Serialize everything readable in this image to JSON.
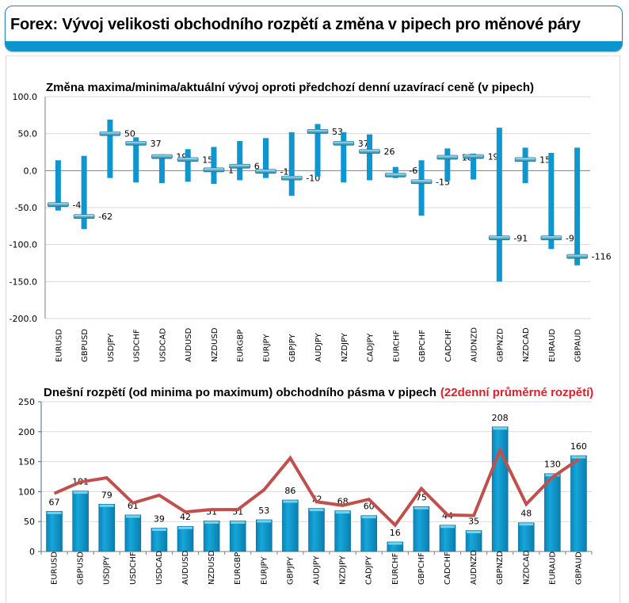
{
  "header": {
    "title": "Forex: Vývoj velikosti obchodního rozpětí a změna v pipech pro měnové páry",
    "accent_color": "#0a95cd"
  },
  "chart_data": [
    {
      "type": "errorbar",
      "title": "Změna maxima/minima/aktuální vývoj oproti předchozí denní uzavírací ceně (v pipech)",
      "xlabel": "",
      "ylabel": "",
      "ylim": [
        -200,
        100
      ],
      "yticks": [
        "100.0",
        "50.0",
        "0.0",
        "-50.0",
        "-100.0",
        "-150.0",
        "-200.0"
      ],
      "ytick_values": [
        100,
        50,
        0,
        -50,
        -100,
        -150,
        -200
      ],
      "grid": true,
      "bar_color": "#0f95cf",
      "marker_color": "#5ab9d8",
      "categories": [
        "EURUSD",
        "GBPUSD",
        "USDJPY",
        "USDCHF",
        "USDCAD",
        "AUDUSD",
        "NZDUSD",
        "EURGBP",
        "EURJPY",
        "GBPJPY",
        "AUDJPY",
        "NZDJPY",
        "CADJPY",
        "EURCHF",
        "GBPCHF",
        "CADCHF",
        "AUDNZD",
        "GBPNZD",
        "NZDCAD",
        "EURAUD",
        "GBPAUD"
      ],
      "series": [
        {
          "name": "max",
          "values": [
            14,
            20,
            69,
            45,
            22,
            29,
            32,
            40,
            44,
            52,
            63,
            52,
            49,
            5,
            14,
            30,
            23,
            58,
            31,
            24,
            31
          ]
        },
        {
          "name": "min",
          "values": [
            -54,
            -79,
            -10,
            -16,
            -17,
            -15,
            -18,
            -13,
            -10,
            -34,
            -8,
            -16,
            -13,
            -10,
            -61,
            -14,
            -12,
            -150,
            -17,
            -106,
            -128
          ]
        },
        {
          "name": "current",
          "values": [
            -46,
            -62,
            50,
            37,
            19,
            15,
            1,
            6,
            -1,
            -10,
            53,
            37,
            26,
            -6,
            -15,
            18,
            19,
            -91,
            15,
            -91,
            -116
          ]
        }
      ],
      "data_labels": [
        "-46",
        "-62",
        "50",
        "37",
        "19",
        "15",
        "1",
        "6",
        "-1",
        "-10",
        "53",
        "37",
        "26",
        "-6",
        "-15",
        "18",
        "19",
        "-91",
        "15",
        "-91",
        "-116"
      ],
      "data_label_shown": [
        true,
        true,
        true,
        true,
        true,
        true,
        true,
        true,
        true,
        true,
        true,
        true,
        true,
        false,
        true,
        true,
        true,
        true,
        true,
        true,
        true
      ]
    },
    {
      "type": "bar+line",
      "title": "Dnešní rozpětí (od minima po maximum) obchodního pásma v pipech",
      "title_highlight": "(22denní průměrné rozpětí)",
      "title_highlight_color": "#d9212b",
      "xlabel": "",
      "ylabel": "",
      "ylim": [
        0,
        250
      ],
      "yticks": [
        "250",
        "200",
        "150",
        "100",
        "50",
        "0"
      ],
      "ytick_values": [
        250,
        200,
        150,
        100,
        50,
        0
      ],
      "grid": true,
      "categories": [
        "EURUSD",
        "GBPUSD",
        "USDJPY",
        "USDCHF",
        "USDCAD",
        "AUDUSD",
        "NZDUSD",
        "EURGBP",
        "EURJPY",
        "GBPJPY",
        "AUDJPY",
        "NZDJPY",
        "CADJPY",
        "EURCHF",
        "GBPCHF",
        "CADCHF",
        "AUDNZD",
        "GBPNZD",
        "NZDCAD",
        "EURAUD",
        "GBPAUD"
      ],
      "series": [
        {
          "name": "Dnešní rozpětí",
          "type": "bar",
          "color": "#0f9fd4",
          "values": [
            67,
            101,
            79,
            61,
            39,
            42,
            51,
            51,
            53,
            86,
            72,
            68,
            60,
            16,
            75,
            44,
            35,
            208,
            48,
            130,
            160
          ]
        },
        {
          "name": "22denní průměrné rozpětí",
          "type": "line",
          "color": "#c0504d",
          "values": [
            97,
            116,
            123,
            81,
            94,
            66,
            70,
            70,
            103,
            156,
            83,
            77,
            87,
            44,
            105,
            61,
            60,
            169,
            79,
            124,
            154
          ]
        }
      ],
      "data_labels": [
        "67",
        "101",
        "79",
        "61",
        "39",
        "42",
        "51",
        "51",
        "53",
        "86",
        "72",
        "68",
        "60",
        "16",
        "75",
        "44",
        "35",
        "208",
        "48",
        "130",
        "160"
      ]
    }
  ]
}
